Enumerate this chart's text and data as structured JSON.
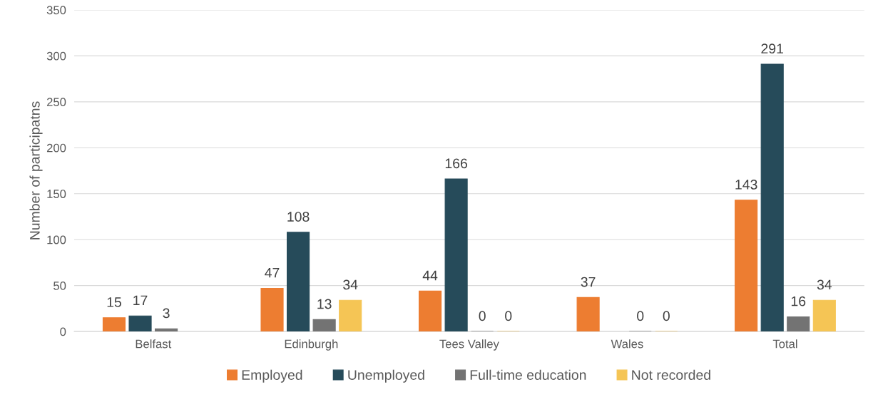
{
  "chart_data": {
    "type": "bar",
    "ylabel": "Number of participatns",
    "categories": [
      "Belfast",
      "Edinburgh",
      "Tees Valley",
      "Wales",
      "Total"
    ],
    "series": [
      {
        "name": "Employed",
        "color": "#ed7d31",
        "values": [
          15,
          47,
          44,
          37,
          143
        ]
      },
      {
        "name": "Unemployed",
        "color": "#264b5a",
        "values": [
          17,
          108,
          166,
          null,
          291
        ]
      },
      {
        "name": "Full-time education",
        "color": "#737373",
        "values": [
          3,
          13,
          0,
          0,
          16
        ]
      },
      {
        "name": "Not recorded",
        "color": "#f5c555",
        "values": [
          null,
          34,
          0,
          0,
          34
        ]
      }
    ],
    "ylim": [
      0,
      350
    ],
    "yticks": [
      0,
      50,
      100,
      150,
      200,
      250,
      300,
      350
    ],
    "grid": "y",
    "legend": "bottom",
    "data_labels": true
  }
}
